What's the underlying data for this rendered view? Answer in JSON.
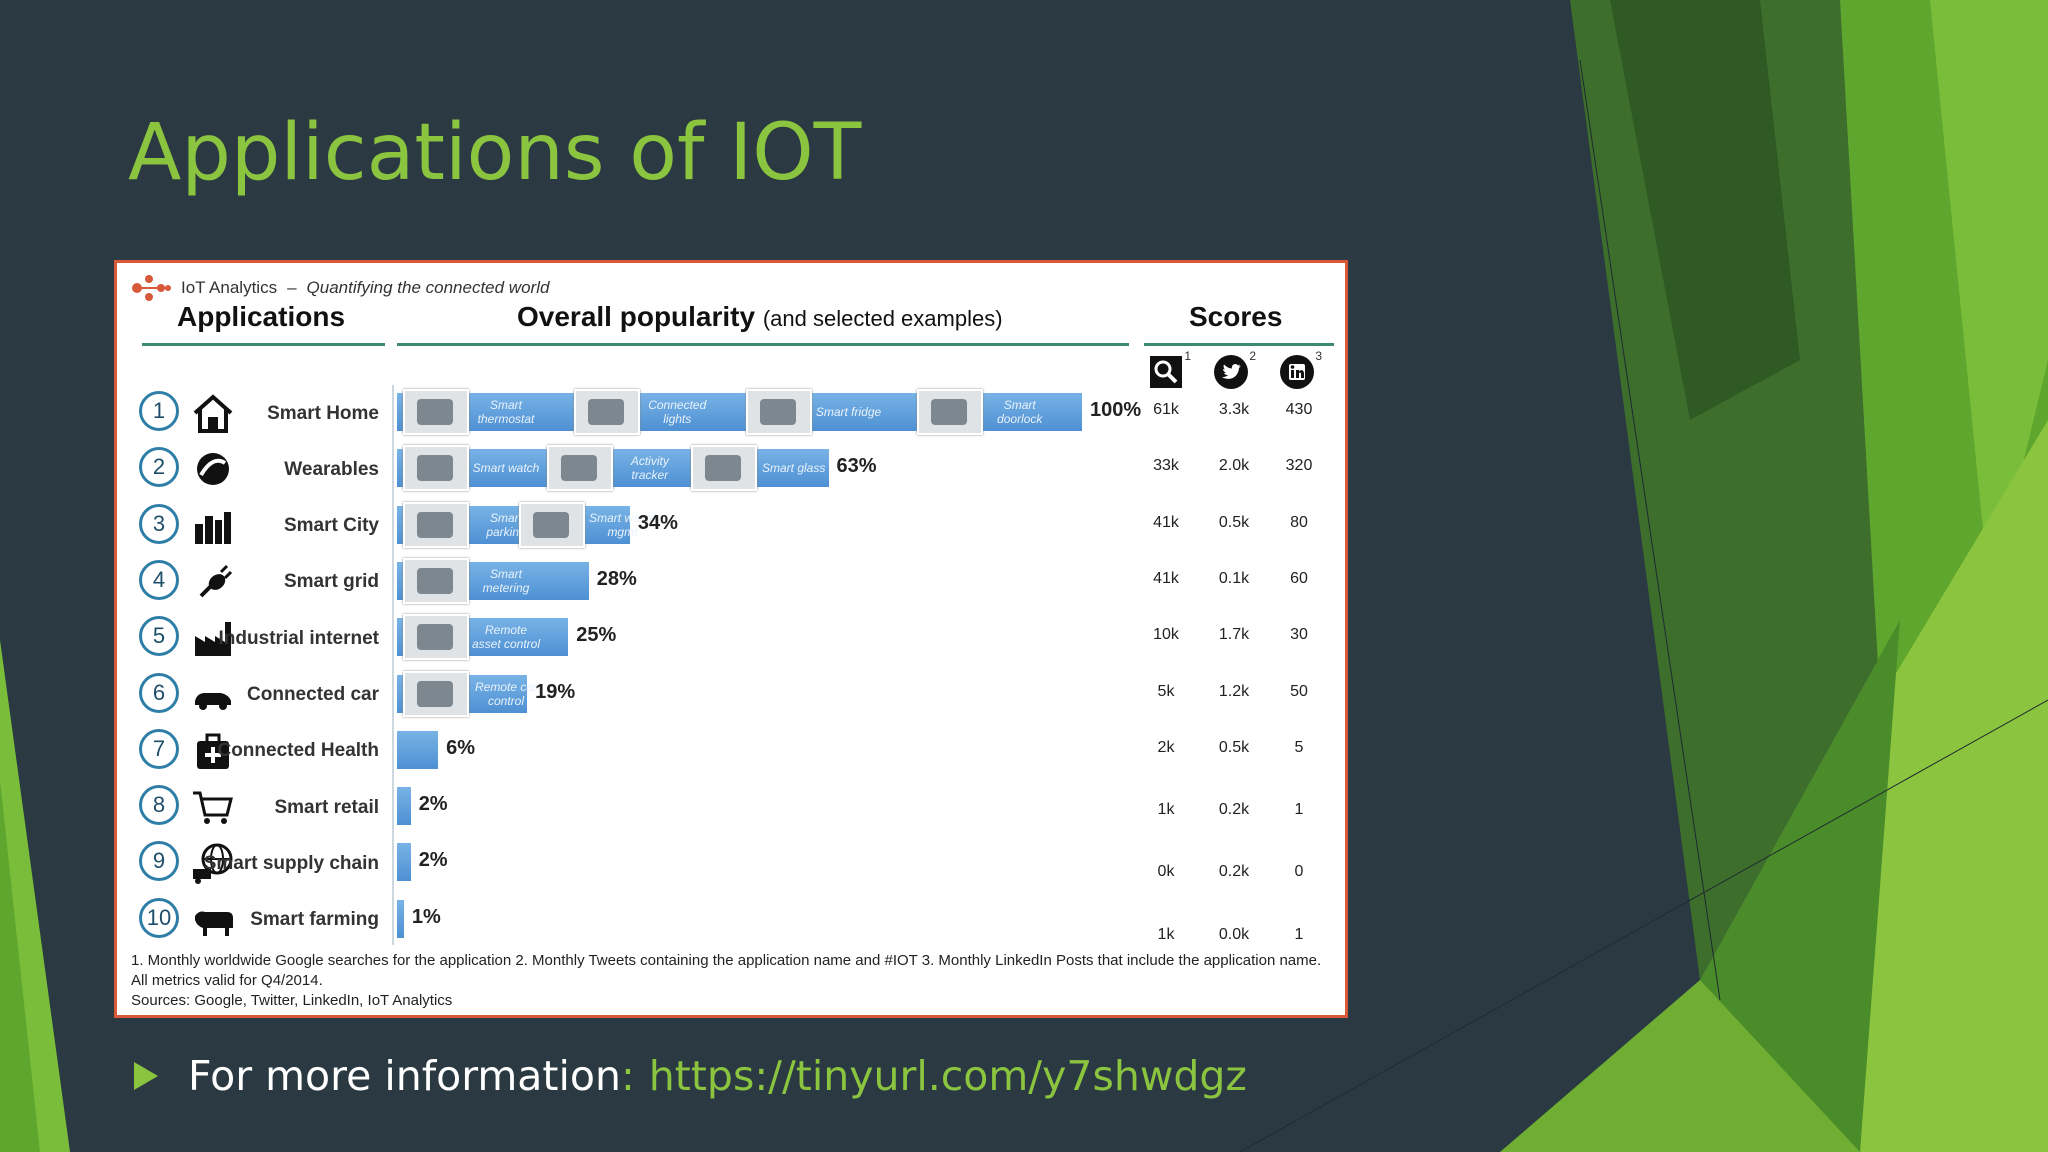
{
  "slide": {
    "title": "Applications of IOT",
    "bullet_text": "For more information ",
    "bullet_sep": ":",
    "bullet_link": "https://tinyurl.com/y7shwdgz"
  },
  "colors": {
    "background": "#2b3a42",
    "accent_green": "#8bc43f",
    "bar_blue": "#5b9bd5",
    "frame_border": "#d8583a"
  },
  "infographic": {
    "brand_name": "IoT Analytics",
    "brand_dash": "–",
    "brand_tagline": "Quantifying the connected world",
    "headers": {
      "applications": "Applications",
      "popularity": "Overall popularity",
      "popularity_sub": "(and selected examples)",
      "scores": "Scores"
    },
    "score_icons": [
      {
        "icon": "search-icon",
        "sup": "1"
      },
      {
        "icon": "twitter-icon",
        "sup": "2"
      },
      {
        "icon": "linkedin-icon",
        "sup": "3"
      }
    ],
    "rows": [
      {
        "num": "1",
        "label": "Smart Home",
        "icon": "house-icon",
        "pct": "100%",
        "value": 100,
        "examples": [
          "Smart thermostat",
          "Connected lights",
          "Smart fridge",
          "Smart doorlock"
        ],
        "scores": [
          "61k",
          "3.3k",
          "430"
        ]
      },
      {
        "num": "2",
        "label": "Wearables",
        "icon": "wearable-icon",
        "pct": "63%",
        "value": 63,
        "examples": [
          "Smart watch",
          "Activity tracker",
          "Smart glass"
        ],
        "scores": [
          "33k",
          "2.0k",
          "320"
        ]
      },
      {
        "num": "3",
        "label": "Smart City",
        "icon": "city-icon",
        "pct": "34%",
        "value": 34,
        "examples": [
          "Smart parking",
          "Smart waste mgmt"
        ],
        "scores": [
          "41k",
          "0.5k",
          "80"
        ]
      },
      {
        "num": "4",
        "label": "Smart grid",
        "icon": "plug-icon",
        "pct": "28%",
        "value": 28,
        "examples": [
          "Smart metering"
        ],
        "scores": [
          "41k",
          "0.1k",
          "60"
        ]
      },
      {
        "num": "5",
        "label": "Industrial internet",
        "icon": "factory-icon",
        "pct": "25%",
        "value": 25,
        "examples": [
          "Remote asset control"
        ],
        "scores": [
          "10k",
          "1.7k",
          "30"
        ]
      },
      {
        "num": "6",
        "label": "Connected car",
        "icon": "car-icon",
        "pct": "19%",
        "value": 19,
        "examples": [
          "Remote car control"
        ],
        "scores": [
          "5k",
          "1.2k",
          "50"
        ]
      },
      {
        "num": "7",
        "label": "Connected Health",
        "icon": "medkit-icon",
        "pct": "6%",
        "value": 6,
        "examples": [],
        "scores": [
          "2k",
          "0.5k",
          "5"
        ]
      },
      {
        "num": "8",
        "label": "Smart retail",
        "icon": "cart-icon",
        "pct": "2%",
        "value": 2,
        "examples": [],
        "scores": [
          "1k",
          "0.2k",
          "1"
        ]
      },
      {
        "num": "9",
        "label": "Smart supply chain",
        "icon": "globe-truck-icon",
        "pct": "2%",
        "value": 2,
        "examples": [],
        "scores": [
          "0k",
          "0.2k",
          "0"
        ]
      },
      {
        "num": "10",
        "label": "Smart farming",
        "icon": "cow-icon",
        "pct": "1%",
        "value": 1,
        "examples": [],
        "scores": [
          "1k",
          "0.0k",
          "1"
        ]
      }
    ],
    "footnote_1": "1. Monthly worldwide Google searches for the application  2. Monthly Tweets containing the application name and #IOT  3. Monthly LinkedIn Posts that include the application name.  All metrics valid for Q4/2014.",
    "footnote_2": "Sources: Google, Twitter, LinkedIn, IoT Analytics"
  },
  "chart_data": {
    "type": "bar",
    "title": "Overall popularity",
    "categories": [
      "Smart Home",
      "Wearables",
      "Smart City",
      "Smart grid",
      "Industrial internet",
      "Connected car",
      "Connected Health",
      "Smart retail",
      "Smart supply chain",
      "Smart farming"
    ],
    "values": [
      100,
      63,
      34,
      28,
      25,
      19,
      6,
      2,
      2,
      1
    ],
    "xlim": [
      0,
      100
    ],
    "orientation": "horizontal"
  }
}
